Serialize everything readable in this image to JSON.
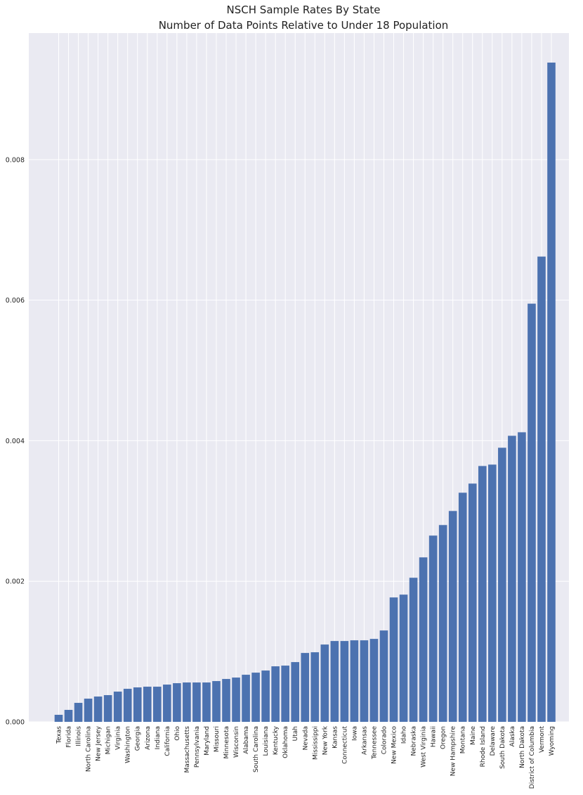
{
  "chart_data": {
    "type": "bar",
    "title": "NSCH Sample Rates By State",
    "subtitle": "Number of Data Points Relative to Under 18 Population",
    "xlabel": "",
    "ylabel": "",
    "ylim": [
      0,
      0.0098
    ],
    "yticks": [
      0.0,
      0.002,
      0.004,
      0.006,
      0.008
    ],
    "ytick_labels": [
      "0.000",
      "0.002",
      "0.004",
      "0.006",
      "0.008"
    ],
    "grid": true,
    "legend": "none",
    "bar_color": "#4c72b0",
    "background_color": "#eaeaf2",
    "categories": [
      "Texas",
      "Florida",
      "Illinois",
      "North Carolina",
      "New Jersey",
      "Michigan",
      "Virginia",
      "Washington",
      "Georgia",
      "Arizona",
      "Indiana",
      "California",
      "Ohio",
      "Massachusetts",
      "Pennsylvania",
      "Maryland",
      "Missouri",
      "Minnesota",
      "Wisconsin",
      "Alabama",
      "South Carolina",
      "Louisiana",
      "Kentucky",
      "Oklahoma",
      "Utah",
      "Nevada",
      "Mississippi",
      "New York",
      "Kansas",
      "Connecticut",
      "Iowa",
      "Arkansas",
      "Tennessee",
      "Colorado",
      "New Mexico",
      "Idaho",
      "Nebraska",
      "West Virginia",
      "Hawaii",
      "Oregon",
      "New Hampshire",
      "Montana",
      "Maine",
      "Rhode Island",
      "Delaware",
      "South Dakota",
      "Alaska",
      "North Dakota",
      "District of Columbia",
      "Vermont",
      "Wyoming"
    ],
    "values": [
      0.0001,
      0.00017,
      0.00027,
      0.00033,
      0.00036,
      0.00038,
      0.00043,
      0.00047,
      0.00049,
      0.0005,
      0.0005,
      0.00053,
      0.00055,
      0.00056,
      0.00056,
      0.00056,
      0.00058,
      0.00061,
      0.00063,
      0.00067,
      0.0007,
      0.00073,
      0.00079,
      0.0008,
      0.00085,
      0.00098,
      0.00099,
      0.0011,
      0.00115,
      0.00115,
      0.00116,
      0.00116,
      0.00118,
      0.0013,
      0.00177,
      0.00181,
      0.00205,
      0.00234,
      0.00265,
      0.0028,
      0.003,
      0.00326,
      0.00339,
      0.00364,
      0.00366,
      0.0039,
      0.00407,
      0.00412,
      0.00595,
      0.00662,
      0.00938
    ]
  }
}
